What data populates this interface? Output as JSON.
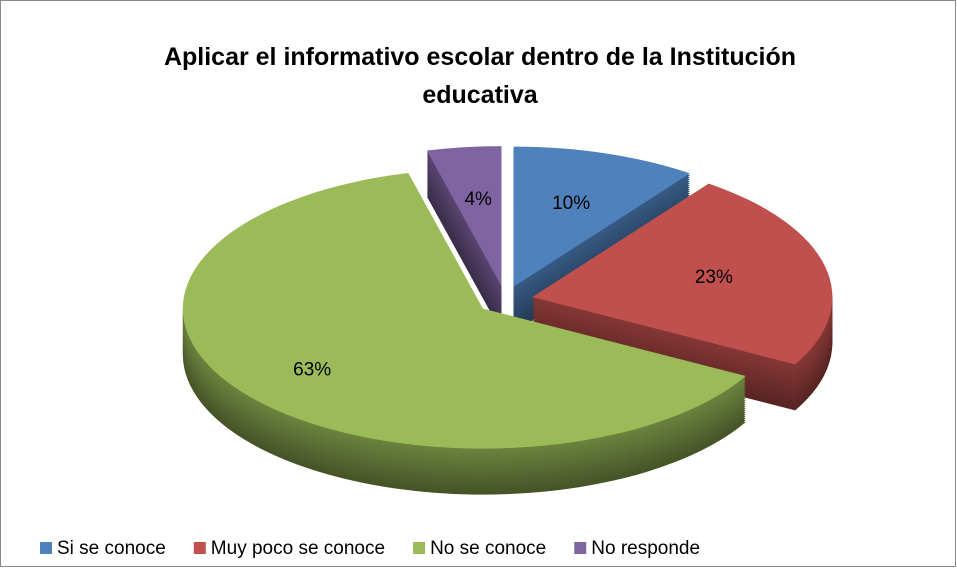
{
  "chart_data": {
    "type": "pie",
    "title": "Aplicar el informativo escolar dentro de la Institución educativa",
    "categories": [
      "Si se conoce",
      "Muy poco se conoce",
      "No se conoce",
      "No responde"
    ],
    "values": [
      10,
      23,
      63,
      4
    ],
    "value_labels": [
      "10%",
      "23%",
      "63%",
      "4%"
    ],
    "colors": [
      "#4f81bd",
      "#c0504d",
      "#9bbb59",
      "#8064a2"
    ],
    "legend": "bottom"
  }
}
